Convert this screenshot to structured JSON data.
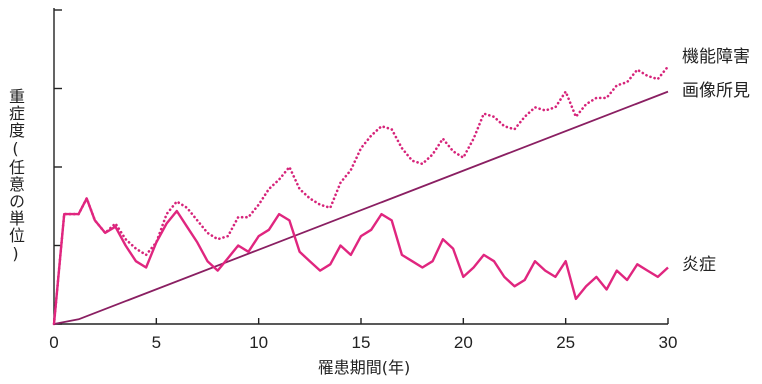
{
  "chart_data": {
    "type": "line",
    "xlabel": "罹患期間(年)",
    "ylabel": "重症度(任意の単位)",
    "xlim": [
      0,
      30
    ],
    "ylim": [
      0,
      100
    ],
    "xticks": [
      0,
      5,
      10,
      15,
      20,
      25,
      30
    ],
    "yticks": [
      0,
      25,
      50,
      75,
      100
    ],
    "x_tick_labels": [
      "0",
      "5",
      "10",
      "15",
      "20",
      "25",
      "30"
    ],
    "grid": false,
    "legend": "inline-right",
    "series": [
      {
        "name": "機能障害",
        "style": "dotted",
        "color": "#d6247a",
        "points": [
          [
            0,
            0
          ],
          [
            0.5,
            35
          ],
          [
            1.2,
            35
          ],
          [
            1.6,
            40
          ],
          [
            2,
            33
          ],
          [
            2.5,
            29
          ],
          [
            3,
            32
          ],
          [
            3.5,
            27
          ],
          [
            4,
            24
          ],
          [
            4.5,
            22
          ],
          [
            5,
            26
          ],
          [
            5.5,
            35
          ],
          [
            6,
            39
          ],
          [
            6.5,
            37
          ],
          [
            7,
            33
          ],
          [
            7.5,
            29
          ],
          [
            8,
            27
          ],
          [
            8.5,
            28
          ],
          [
            9,
            34
          ],
          [
            9.5,
            34
          ],
          [
            10,
            38
          ],
          [
            10.5,
            43
          ],
          [
            11,
            46
          ],
          [
            11.5,
            50
          ],
          [
            12,
            43
          ],
          [
            12.5,
            40
          ],
          [
            13,
            38
          ],
          [
            13.5,
            37
          ],
          [
            14,
            45
          ],
          [
            14.5,
            49
          ],
          [
            15,
            56
          ],
          [
            15.5,
            60
          ],
          [
            16,
            63
          ],
          [
            16.5,
            62
          ],
          [
            17,
            56
          ],
          [
            17.5,
            52
          ],
          [
            18,
            51
          ],
          [
            18.5,
            54
          ],
          [
            19,
            59
          ],
          [
            19.5,
            55
          ],
          [
            20,
            53
          ],
          [
            20.5,
            59
          ],
          [
            21,
            67
          ],
          [
            21.5,
            66
          ],
          [
            22,
            63
          ],
          [
            22.5,
            62
          ],
          [
            23,
            66
          ],
          [
            23.5,
            69
          ],
          [
            24,
            68
          ],
          [
            24.5,
            69
          ],
          [
            25,
            74
          ],
          [
            25.5,
            66
          ],
          [
            26,
            70
          ],
          [
            26.5,
            72
          ],
          [
            27,
            72
          ],
          [
            27.5,
            76
          ],
          [
            28,
            77
          ],
          [
            28.5,
            81
          ],
          [
            29,
            79
          ],
          [
            29.5,
            78
          ],
          [
            30,
            82
          ]
        ]
      },
      {
        "name": "画像所見",
        "style": "solid",
        "color": "#8a1f62",
        "points": [
          [
            0,
            0
          ],
          [
            1.2,
            1.5
          ],
          [
            30,
            74
          ]
        ]
      },
      {
        "name": "炎症",
        "style": "solid",
        "color": "#e0267f",
        "points": [
          [
            0,
            0
          ],
          [
            0.5,
            35
          ],
          [
            1.2,
            35
          ],
          [
            1.6,
            40
          ],
          [
            2,
            33
          ],
          [
            2.5,
            29
          ],
          [
            3,
            31
          ],
          [
            3.5,
            25
          ],
          [
            4,
            20
          ],
          [
            4.5,
            18
          ],
          [
            5,
            26
          ],
          [
            5.5,
            32
          ],
          [
            6,
            36
          ],
          [
            6.5,
            31
          ],
          [
            7,
            26
          ],
          [
            7.5,
            20
          ],
          [
            8,
            17
          ],
          [
            8.5,
            21
          ],
          [
            9,
            25
          ],
          [
            9.5,
            23
          ],
          [
            10,
            28
          ],
          [
            10.5,
            30
          ],
          [
            11,
            35
          ],
          [
            11.5,
            33
          ],
          [
            12,
            23
          ],
          [
            12.5,
            20
          ],
          [
            13,
            17
          ],
          [
            13.5,
            19
          ],
          [
            14,
            25
          ],
          [
            14.5,
            22
          ],
          [
            15,
            28
          ],
          [
            15.5,
            30
          ],
          [
            16,
            35
          ],
          [
            16.5,
            33
          ],
          [
            17,
            22
          ],
          [
            17.5,
            20
          ],
          [
            18,
            18
          ],
          [
            18.5,
            20
          ],
          [
            19,
            27
          ],
          [
            19.5,
            24
          ],
          [
            20,
            15
          ],
          [
            20.5,
            18
          ],
          [
            21,
            22
          ],
          [
            21.5,
            20
          ],
          [
            22,
            15
          ],
          [
            22.5,
            12
          ],
          [
            23,
            14
          ],
          [
            23.5,
            20
          ],
          [
            24,
            17
          ],
          [
            24.5,
            15
          ],
          [
            25,
            20
          ],
          [
            25.5,
            8
          ],
          [
            26,
            12
          ],
          [
            26.5,
            15
          ],
          [
            27,
            11
          ],
          [
            27.5,
            17
          ],
          [
            28,
            14
          ],
          [
            28.5,
            19
          ],
          [
            29,
            17
          ],
          [
            29.5,
            15
          ],
          [
            30,
            18
          ]
        ]
      }
    ]
  }
}
